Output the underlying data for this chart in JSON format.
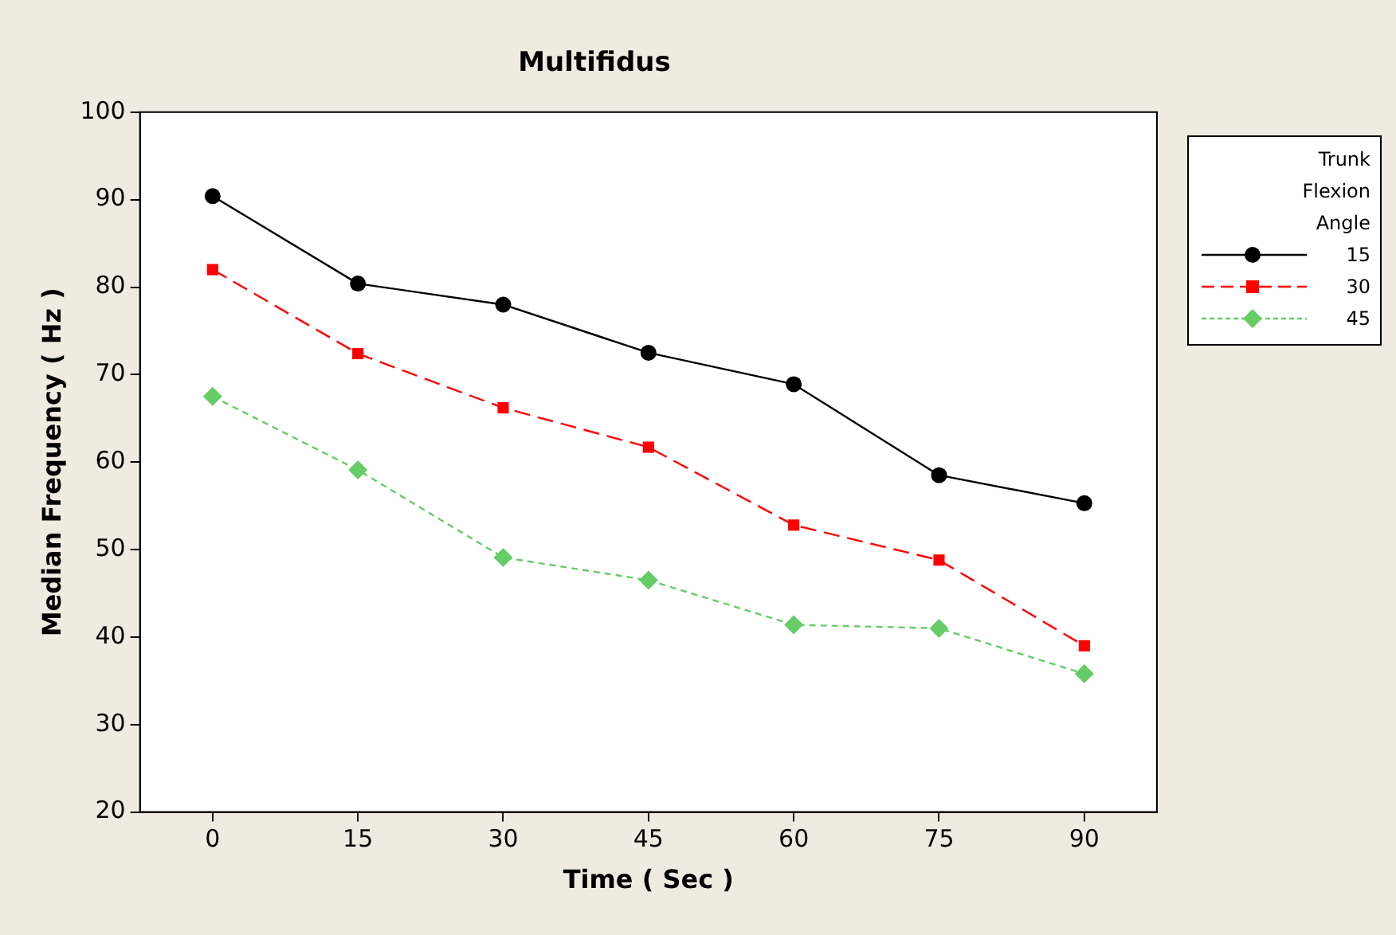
{
  "chart_data": {
    "type": "line",
    "title": "Multifidus",
    "xlabel": "Time ( Sec )",
    "ylabel": "Median Frequency ( Hz )",
    "legend_title": "Trunk Flexion Angle",
    "categories": [
      "0",
      "15",
      "30",
      "45",
      "60",
      "75",
      "90"
    ],
    "ylim": [
      20,
      100
    ],
    "yticks": [
      20,
      30,
      40,
      50,
      60,
      70,
      80,
      90,
      100
    ],
    "grid": false,
    "legend": "top right",
    "series": [
      {
        "name": "15",
        "color": "#000000",
        "marker": "circle",
        "line_style": "solid",
        "values": [
          90.4,
          80.4,
          78,
          72.5,
          68.9,
          58.5,
          55.3
        ]
      },
      {
        "name": "30",
        "color": "#ff0000",
        "marker": "square",
        "line_style": "dashed",
        "values": [
          82,
          72.4,
          66.2,
          61.7,
          52.8,
          48.8,
          39
        ]
      },
      {
        "name": "45",
        "color": "#66cc66",
        "marker": "diamond",
        "line_style": "dotted",
        "values": [
          67.5,
          59.1,
          49.1,
          46.5,
          41.4,
          41,
          35.8
        ]
      }
    ]
  }
}
